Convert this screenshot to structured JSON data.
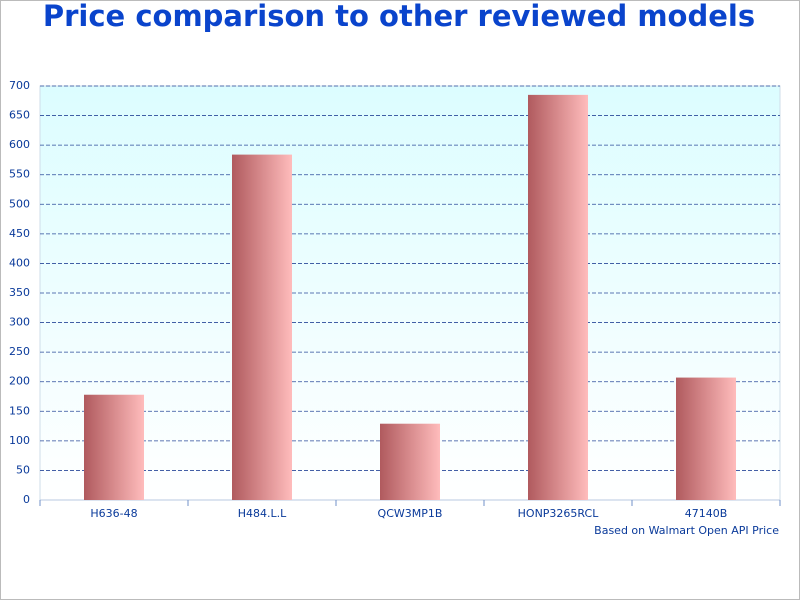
{
  "chart_data": {
    "type": "bar",
    "title": "Price comparison to other reviewed models",
    "categories": [
      "H636-48",
      "H484.L.L",
      "QCW3MP1B",
      "HONP3265RCL",
      "47140B"
    ],
    "values": [
      178,
      584,
      129,
      685,
      207
    ],
    "color": [
      "#b05a5e",
      "#ffbcbc"
    ],
    "ylim": [
      0,
      700
    ],
    "yticks": [
      0,
      50,
      100,
      150,
      200,
      250,
      300,
      350,
      400,
      450,
      500,
      550,
      600,
      650,
      700
    ],
    "grid": true,
    "annotation": "Based on Walmart Open API Price"
  }
}
